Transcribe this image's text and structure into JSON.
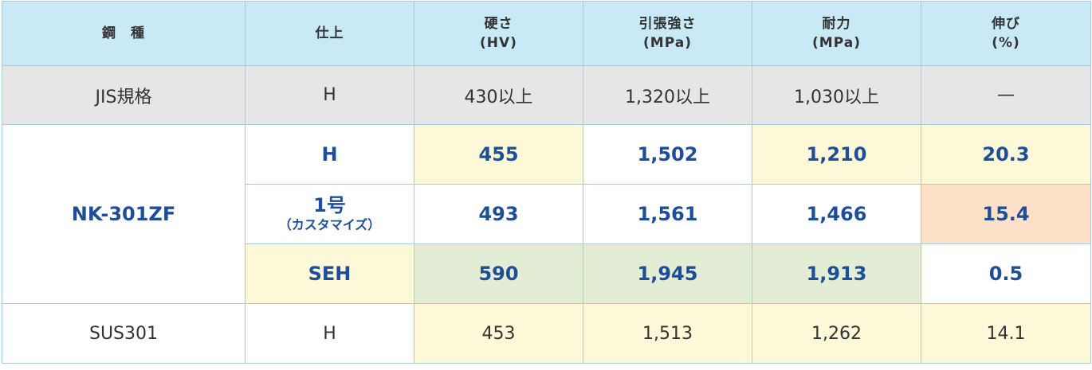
{
  "table": {
    "header": [
      [
        "鋼　種"
      ],
      [
        "仕上"
      ],
      [
        "硬さ",
        "(HV)"
      ],
      [
        "引張強さ",
        "(MPa)"
      ],
      [
        "耐力",
        "(MPa)"
      ],
      [
        "伸び",
        "(%)"
      ]
    ],
    "rows": [
      [
        "JIS規格",
        "H",
        "430以上",
        "1,320以上",
        "1,030以上",
        "—"
      ],
      [
        "NK-301ZF",
        "H",
        "455",
        "1,502",
        "1,210",
        "20.3"
      ],
      [
        [
          "1号",
          "（カスタマイズ）"
        ],
        "493",
        "1,561",
        "1,466",
        "15.4"
      ],
      [
        "SEH",
        "590",
        "1,945",
        "1,913",
        "0.5"
      ],
      [
        "SUS301",
        "H",
        "453",
        "1,513",
        "1,262",
        "14.1"
      ]
    ]
  }
}
